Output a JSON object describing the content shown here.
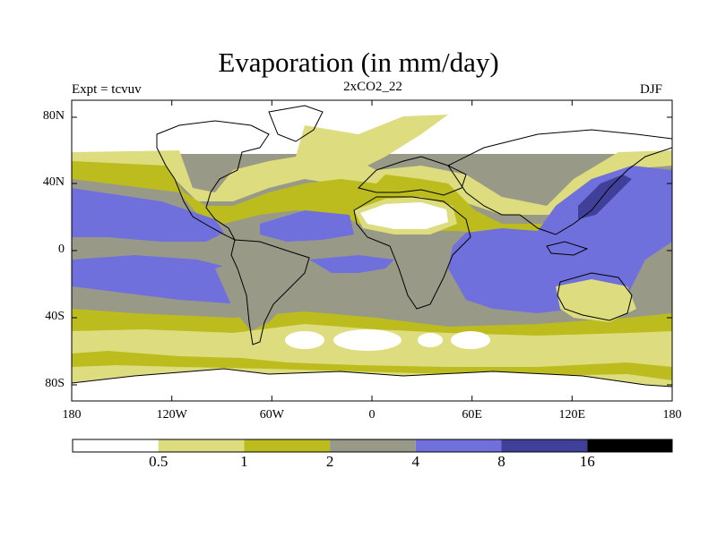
{
  "title": "Evaporation (in mm/day)",
  "subtitle": "2xCO2_22",
  "experiment": "Expt = tcvuv",
  "season": "DJF",
  "axes": {
    "y_ticks": [
      "80N",
      "40N",
      "0",
      "40S",
      "80S"
    ],
    "x_ticks": [
      "180",
      "120W",
      "60W",
      "0",
      "60E",
      "120E",
      "180"
    ]
  },
  "colorbar": {
    "labels": [
      "0.5",
      "1",
      "2",
      "4",
      "8",
      "16"
    ],
    "colors": [
      "#ffffff",
      "#dddd80",
      "#bcbc1e",
      "#999988",
      "#7070dd",
      "#40409a",
      "#000000"
    ]
  },
  "map_colors": {
    "c05": "#dddd80",
    "c1": "#bcbc1e",
    "c2": "#999988",
    "c4": "#7070dd",
    "c8": "#40409a"
  }
}
